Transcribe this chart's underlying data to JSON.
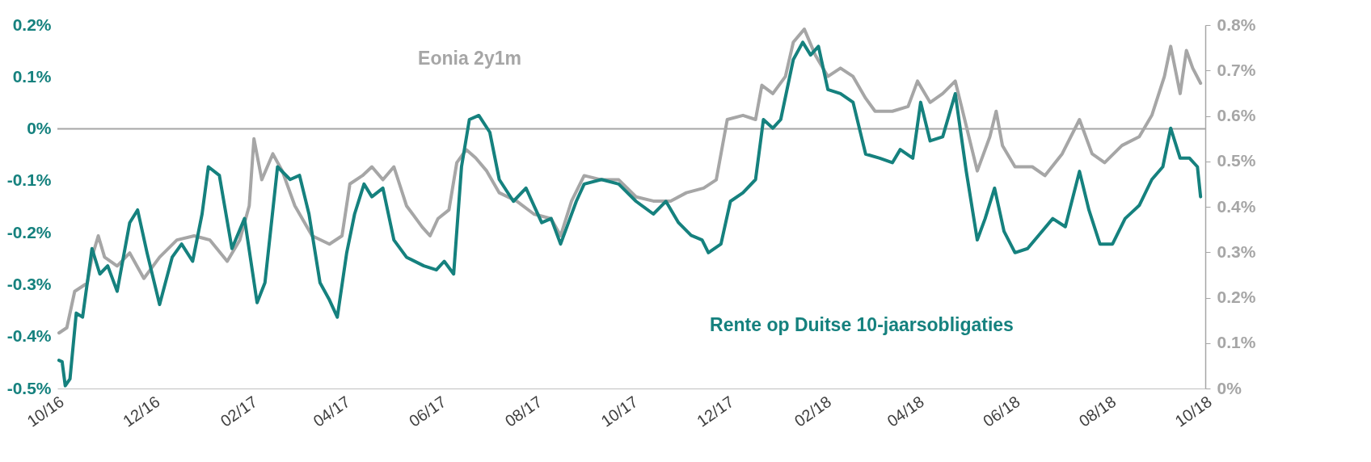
{
  "chart_data": {
    "type": "line",
    "series": [
      {
        "name": "Eonia 2y1m",
        "color": "#a6a6a6",
        "axis": "y",
        "x": [
          "2016-10-02",
          "2016-10-07",
          "2016-10-12",
          "2016-10-20",
          "2016-10-23",
          "2016-10-27",
          "2016-10-31",
          "2016-11-08",
          "2016-11-16",
          "2016-11-25",
          "2016-12-05",
          "2016-12-16",
          "2016-12-27",
          "2017-01-06",
          "2017-01-17",
          "2017-01-25",
          "2017-01-31",
          "2017-02-03",
          "2017-02-08",
          "2017-02-15",
          "2017-02-21",
          "2017-03-01",
          "2017-03-12",
          "2017-03-23",
          "2017-03-31",
          "2017-04-05",
          "2017-04-13",
          "2017-04-19",
          "2017-04-26",
          "2017-05-03",
          "2017-05-11",
          "2017-05-21",
          "2017-05-26",
          "2017-05-31",
          "2017-06-07",
          "2017-06-12",
          "2017-06-18",
          "2017-06-24",
          "2017-07-01",
          "2017-07-09",
          "2017-07-20",
          "2017-07-31",
          "2017-08-11",
          "2017-08-17",
          "2017-08-24",
          "2017-09-01",
          "2017-09-12",
          "2017-09-23",
          "2017-10-04",
          "2017-10-15",
          "2017-10-26",
          "2017-11-05",
          "2017-11-16",
          "2017-11-24",
          "2017-12-01",
          "2017-12-11",
          "2017-12-19",
          "2017-12-23",
          "2017-12-30",
          "2018-01-07",
          "2018-01-12",
          "2018-01-19",
          "2018-01-26",
          "2018-02-03",
          "2018-02-11",
          "2018-02-19",
          "2018-02-27",
          "2018-03-05",
          "2018-03-16",
          "2018-03-26",
          "2018-04-01",
          "2018-04-09",
          "2018-04-17",
          "2018-04-25",
          "2018-05-01",
          "2018-05-09",
          "2018-05-17",
          "2018-05-21",
          "2018-05-25",
          "2018-06-02",
          "2018-06-13",
          "2018-06-21",
          "2018-07-02",
          "2018-07-13",
          "2018-07-21",
          "2018-07-29",
          "2018-08-09",
          "2018-08-20",
          "2018-08-28",
          "2018-09-05",
          "2018-09-09",
          "2018-09-15",
          "2018-09-19",
          "2018-09-23",
          "2018-09-28"
        ],
        "values": [
          -0.393,
          -0.383,
          -0.313,
          -0.297,
          -0.247,
          -0.206,
          -0.247,
          -0.264,
          -0.239,
          -0.288,
          -0.247,
          -0.214,
          -0.206,
          -0.214,
          -0.255,
          -0.214,
          -0.148,
          -0.019,
          -0.098,
          -0.048,
          -0.081,
          -0.148,
          -0.206,
          -0.222,
          -0.206,
          -0.106,
          -0.09,
          -0.073,
          -0.098,
          -0.073,
          -0.148,
          -0.189,
          -0.206,
          -0.173,
          -0.156,
          -0.065,
          -0.04,
          -0.056,
          -0.081,
          -0.123,
          -0.139,
          -0.164,
          -0.173,
          -0.206,
          -0.139,
          -0.09,
          -0.098,
          -0.098,
          -0.131,
          -0.139,
          -0.139,
          -0.123,
          -0.114,
          -0.098,
          0.018,
          0.026,
          0.018,
          0.084,
          0.068,
          0.101,
          0.167,
          0.192,
          0.142,
          0.101,
          0.117,
          0.101,
          0.059,
          0.034,
          0.034,
          0.043,
          0.092,
          0.051,
          0.068,
          0.092,
          0.018,
          -0.081,
          -0.015,
          0.034,
          -0.032,
          -0.073,
          -0.073,
          -0.09,
          -0.048,
          0.018,
          -0.048,
          -0.065,
          -0.032,
          -0.015,
          0.026,
          0.101,
          0.159,
          0.068,
          0.151,
          0.117,
          0.088
        ]
      },
      {
        "name": "Rente op Duitse 10-jaarsobligaties",
        "color": "#15817e",
        "axis": "y2",
        "x": [
          "2016-10-02",
          "2016-10-04",
          "2016-10-06",
          "2016-10-09",
          "2016-10-13",
          "2016-10-17",
          "2016-10-23",
          "2016-10-28",
          "2016-11-02",
          "2016-11-08",
          "2016-11-16",
          "2016-11-21",
          "2016-11-27",
          "2016-12-05",
          "2016-12-13",
          "2016-12-19",
          "2016-12-26",
          "2017-01-01",
          "2017-01-05",
          "2017-01-12",
          "2017-01-20",
          "2017-01-28",
          "2017-02-05",
          "2017-02-10",
          "2017-02-18",
          "2017-02-26",
          "2017-03-04",
          "2017-03-10",
          "2017-03-17",
          "2017-03-23",
          "2017-03-28",
          "2017-04-03",
          "2017-04-08",
          "2017-04-14",
          "2017-04-19",
          "2017-04-26",
          "2017-05-03",
          "2017-05-11",
          "2017-05-22",
          "2017-05-30",
          "2017-06-04",
          "2017-06-10",
          "2017-06-15",
          "2017-06-20",
          "2017-06-26",
          "2017-07-03",
          "2017-07-09",
          "2017-07-18",
          "2017-07-26",
          "2017-08-05",
          "2017-08-11",
          "2017-08-17",
          "2017-08-27",
          "2017-09-01",
          "2017-09-12",
          "2017-09-23",
          "2017-10-04",
          "2017-10-15",
          "2017-10-23",
          "2017-10-31",
          "2017-11-08",
          "2017-11-15",
          "2017-11-19",
          "2017-11-27",
          "2017-12-03",
          "2017-12-11",
          "2017-12-19",
          "2017-12-24",
          "2017-12-30",
          "2018-01-04",
          "2018-01-12",
          "2018-01-18",
          "2018-01-23",
          "2018-01-28",
          "2018-02-03",
          "2018-02-11",
          "2018-02-19",
          "2018-02-27",
          "2018-03-08",
          "2018-03-16",
          "2018-03-21",
          "2018-03-29",
          "2018-04-03",
          "2018-04-09",
          "2018-04-17",
          "2018-04-25",
          "2018-05-02",
          "2018-05-09",
          "2018-05-14",
          "2018-05-20",
          "2018-05-26",
          "2018-06-02",
          "2018-06-10",
          "2018-06-17",
          "2018-06-26",
          "2018-07-04",
          "2018-07-13",
          "2018-07-19",
          "2018-07-26",
          "2018-08-03",
          "2018-08-11",
          "2018-08-20",
          "2018-08-28",
          "2018-09-04",
          "2018-09-09",
          "2018-09-15",
          "2018-09-21",
          "2018-09-26",
          "2018-09-28"
        ],
        "values": [
          0.062,
          0.059,
          0.006,
          0.021,
          0.166,
          0.157,
          0.308,
          0.252,
          0.27,
          0.214,
          0.365,
          0.393,
          0.299,
          0.185,
          0.289,
          0.318,
          0.28,
          0.384,
          0.488,
          0.469,
          0.308,
          0.374,
          0.189,
          0.233,
          0.488,
          0.46,
          0.469,
          0.384,
          0.233,
          0.195,
          0.157,
          0.299,
          0.384,
          0.45,
          0.422,
          0.441,
          0.327,
          0.289,
          0.27,
          0.261,
          0.28,
          0.252,
          0.488,
          0.592,
          0.601,
          0.564,
          0.46,
          0.412,
          0.441,
          0.365,
          0.374,
          0.318,
          0.412,
          0.45,
          0.46,
          0.45,
          0.412,
          0.384,
          0.412,
          0.365,
          0.337,
          0.327,
          0.299,
          0.318,
          0.412,
          0.431,
          0.46,
          0.592,
          0.573,
          0.592,
          0.724,
          0.762,
          0.734,
          0.753,
          0.658,
          0.649,
          0.63,
          0.516,
          0.507,
          0.497,
          0.526,
          0.507,
          0.63,
          0.545,
          0.554,
          0.649,
          0.478,
          0.327,
          0.374,
          0.441,
          0.346,
          0.299,
          0.308,
          0.337,
          0.374,
          0.356,
          0.478,
          0.393,
          0.318,
          0.318,
          0.374,
          0.403,
          0.46,
          0.488,
          0.573,
          0.507,
          0.507,
          0.488,
          0.422
        ]
      }
    ],
    "xlim": [
      "2016-10-01",
      "2018-10-01"
    ],
    "xticks": [
      {
        "value": "2016-10-01",
        "label": "10/16"
      },
      {
        "value": "2016-12-01",
        "label": "12/16"
      },
      {
        "value": "2017-02-01",
        "label": "02/17"
      },
      {
        "value": "2017-04-01",
        "label": "04/17"
      },
      {
        "value": "2017-06-01",
        "label": "06/17"
      },
      {
        "value": "2017-08-01",
        "label": "08/17"
      },
      {
        "value": "2017-10-01",
        "label": "10/17"
      },
      {
        "value": "2017-12-01",
        "label": "12/17"
      },
      {
        "value": "2018-02-01",
        "label": "02/18"
      },
      {
        "value": "2018-04-01",
        "label": "04/18"
      },
      {
        "value": "2018-06-01",
        "label": "06/18"
      },
      {
        "value": "2018-08-01",
        "label": "08/18"
      },
      {
        "value": "2018-10-01",
        "label": "10/18"
      }
    ],
    "ylim": [
      -0.5,
      0.2
    ],
    "yticks": [
      {
        "value": -0.5,
        "label": "-0.5%"
      },
      {
        "value": -0.4,
        "label": "-0.4%"
      },
      {
        "value": -0.3,
        "label": "-0.3%"
      },
      {
        "value": -0.2,
        "label": "-0.2%"
      },
      {
        "value": -0.1,
        "label": "-0.1%"
      },
      {
        "value": 0,
        "label": "0%"
      },
      {
        "value": 0.1,
        "label": "0.1%"
      },
      {
        "value": 0.2,
        "label": "0.2%"
      }
    ],
    "y2lim": [
      0,
      0.8
    ],
    "y2ticks": [
      {
        "value": 0,
        "label": "0%"
      },
      {
        "value": 0.1,
        "label": "0.1%"
      },
      {
        "value": 0.2,
        "label": "0.2%"
      },
      {
        "value": 0.3,
        "label": "0.3%"
      },
      {
        "value": 0.4,
        "label": "0.4%"
      },
      {
        "value": 0.5,
        "label": "0.5%"
      },
      {
        "value": 0.6,
        "label": "0.6%"
      },
      {
        "value": 0.7,
        "label": "0.7%"
      },
      {
        "value": 0.8,
        "label": "0.8%"
      }
    ],
    "ref_lines": [
      {
        "axis": "y",
        "value": 0,
        "color": "#a6a6a6"
      }
    ],
    "grid": false,
    "legend": false,
    "line_style": "solid",
    "marker": "none"
  }
}
